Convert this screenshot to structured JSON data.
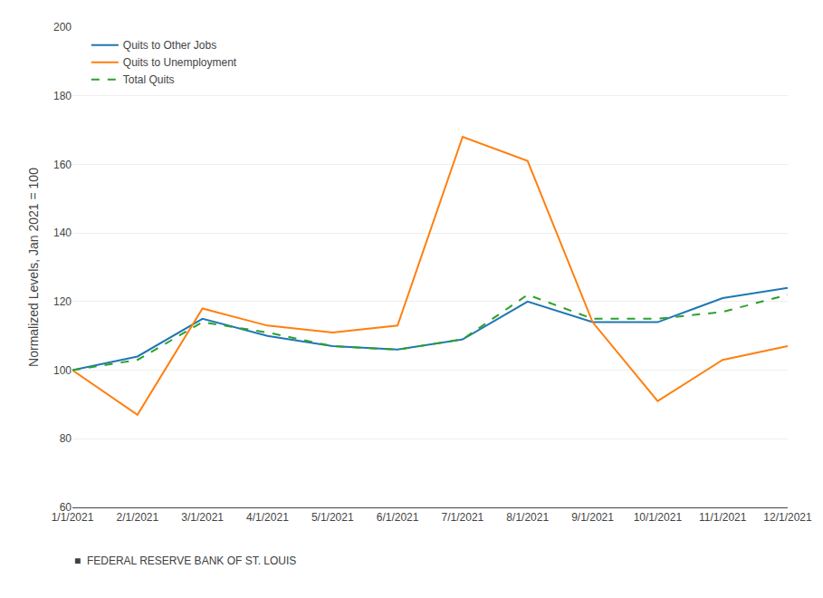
{
  "chart_data": {
    "type": "line",
    "categories": [
      "1/1/2021",
      "2/1/2021",
      "3/1/2021",
      "4/1/2021",
      "5/1/2021",
      "6/1/2021",
      "7/1/2021",
      "8/1/2021",
      "9/1/2021",
      "10/1/2021",
      "11/1/2021",
      "12/1/2021"
    ],
    "series": [
      {
        "name": "Quits to Other Jobs",
        "line_style": "solid",
        "values": [
          100,
          104,
          115,
          110,
          107,
          106,
          109,
          120,
          114,
          114,
          121,
          124
        ]
      },
      {
        "name": "Quits to Unemployment",
        "line_style": "solid",
        "values": [
          100,
          87,
          118,
          113,
          111,
          113,
          168,
          161,
          114,
          91,
          103,
          107
        ]
      },
      {
        "name": "Total Quits",
        "line_style": "dashed",
        "values": [
          100,
          103,
          114,
          111,
          107,
          106,
          109,
          122,
          115,
          115,
          117,
          122
        ]
      }
    ],
    "y_label": "Normalized Levels, Jan 2021 = 100",
    "ylim": [
      60,
      200
    ],
    "yticks": [
      60,
      80,
      100,
      120,
      140,
      160,
      180,
      200
    ],
    "grid": true,
    "legend": "upper left",
    "annotations": [
      "■  FEDERAL RESERVE BANK OF ST. LOUIS"
    ]
  }
}
